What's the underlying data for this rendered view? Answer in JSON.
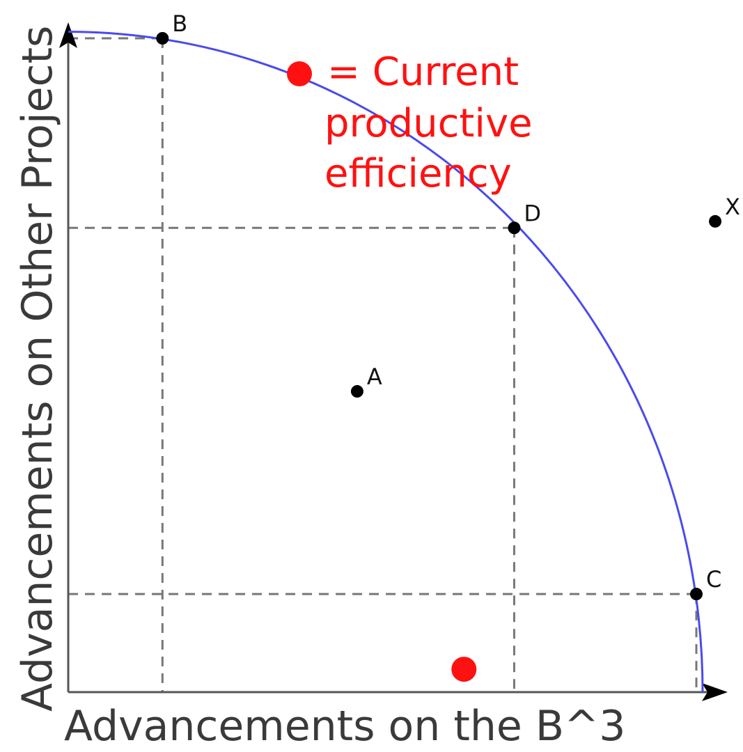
{
  "chart_data": {
    "type": "scatter",
    "title": "",
    "xlabel": "Advancements on the B^3",
    "ylabel": "Advancements on Other Projects",
    "xlim": [
      0,
      10
    ],
    "ylim": [
      0,
      10
    ],
    "grid": false,
    "frontier": {
      "name": "production possibilities frontier",
      "color": "#4a4aee",
      "x_intercept": 10.1,
      "y_intercept": 10.1,
      "passes_through": [
        "B",
        "D",
        "C"
      ]
    },
    "points": [
      {
        "name": "A",
        "label": "A",
        "x": 4.6,
        "y": 4.6
      },
      {
        "name": "B",
        "label": "B",
        "x": 1.5,
        "y": 10.0
      },
      {
        "name": "C",
        "label": "C",
        "x": 10.0,
        "y": 1.5
      },
      {
        "name": "D",
        "label": "D",
        "x": 7.1,
        "y": 7.1
      },
      {
        "name": "X",
        "label": "X",
        "x": 10.3,
        "y": 7.2
      }
    ],
    "guide_lines": [
      {
        "point": "B",
        "style": "dashed"
      },
      {
        "point": "D",
        "style": "dashed"
      },
      {
        "point": "C",
        "style": "dashed"
      }
    ],
    "highlight_points": [
      {
        "name": "current",
        "x": 6.3,
        "y": 0.35
      }
    ],
    "legend": {
      "marker_color": "#ff1111",
      "lines": [
        "= Current",
        "productive",
        "efficiency"
      ],
      "position": "top-center"
    },
    "colors": {
      "axis": "#555555",
      "point": "#000000",
      "guide": "#777777",
      "highlight": "#ff1111"
    }
  }
}
